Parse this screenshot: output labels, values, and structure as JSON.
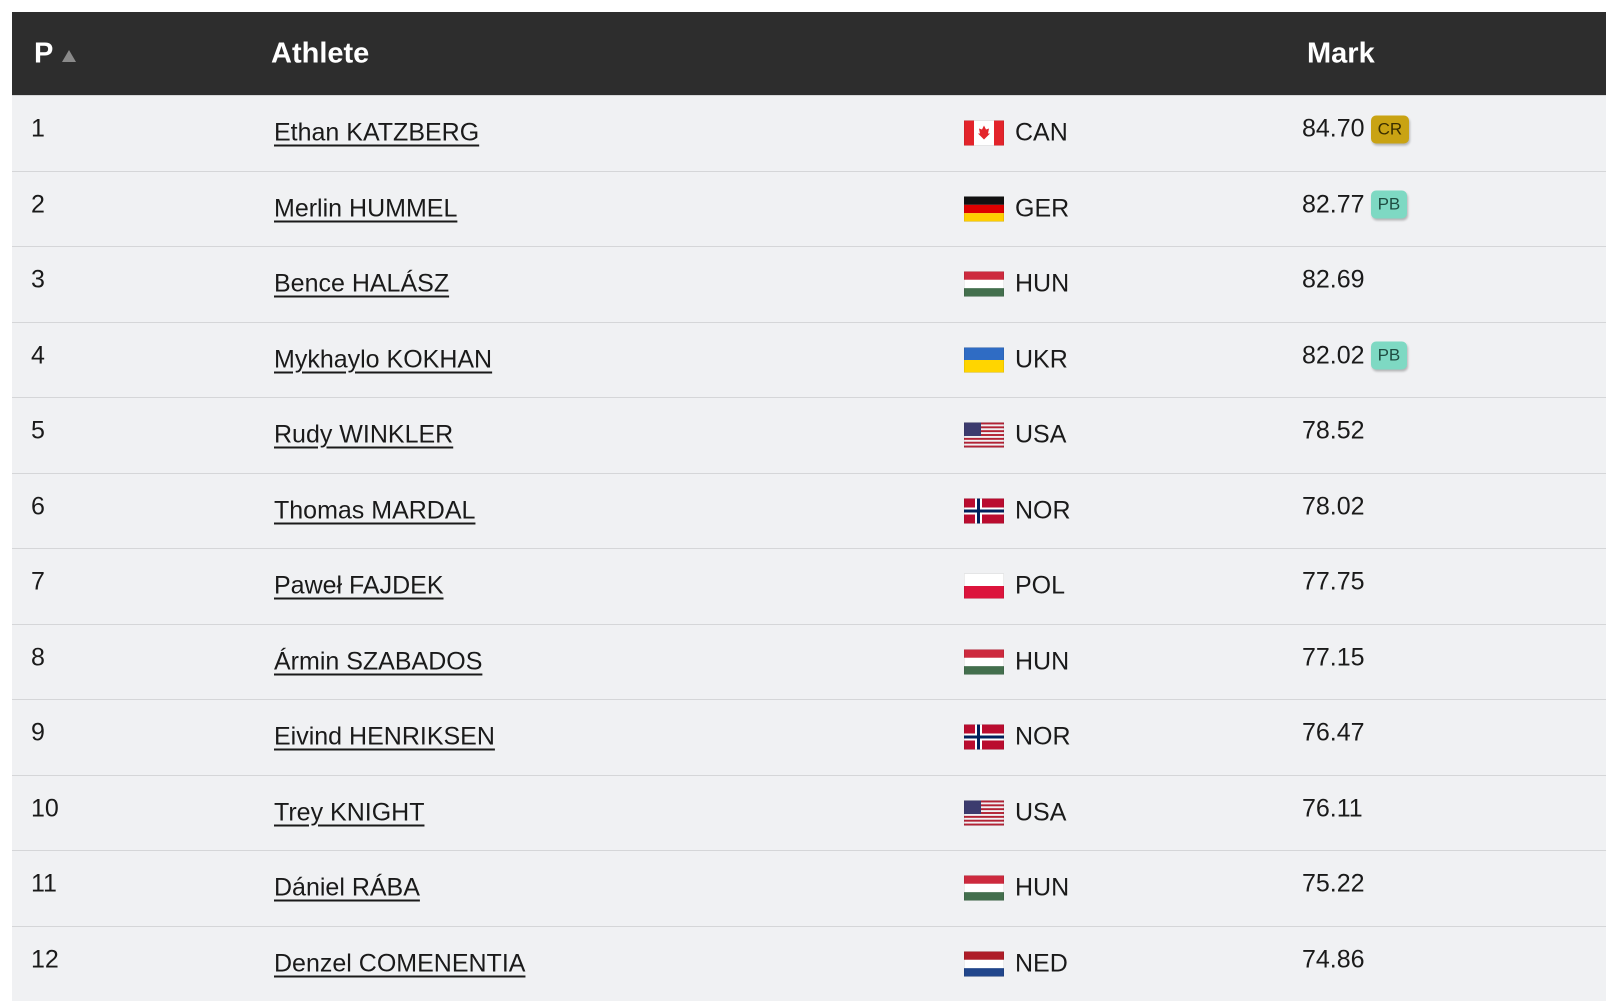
{
  "header": {
    "place": "P",
    "athlete": "Athlete",
    "mark": "Mark"
  },
  "rows": [
    {
      "place": 1,
      "athlete": "Ethan KATZBERG",
      "country": "CAN",
      "mark": "84.70",
      "badge": "CR"
    },
    {
      "place": 2,
      "athlete": "Merlin HUMMEL",
      "country": "GER",
      "mark": "82.77",
      "badge": "PB"
    },
    {
      "place": 3,
      "athlete": "Bence HALÁSZ",
      "country": "HUN",
      "mark": "82.69"
    },
    {
      "place": 4,
      "athlete": "Mykhaylo KOKHAN",
      "country": "UKR",
      "mark": "82.02",
      "badge": "PB"
    },
    {
      "place": 5,
      "athlete": "Rudy WINKLER",
      "country": "USA",
      "mark": "78.52"
    },
    {
      "place": 6,
      "athlete": "Thomas MARDAL",
      "country": "NOR",
      "mark": "78.02"
    },
    {
      "place": 7,
      "athlete": "Paweł FAJDEK",
      "country": "POL",
      "mark": "77.75"
    },
    {
      "place": 8,
      "athlete": "Ármin SZABADOS",
      "country": "HUN",
      "mark": "77.15"
    },
    {
      "place": 9,
      "athlete": "Eivind HENRIKSEN",
      "country": "NOR",
      "mark": "76.47"
    },
    {
      "place": 10,
      "athlete": "Trey KNIGHT",
      "country": "USA",
      "mark": "76.11"
    },
    {
      "place": 11,
      "athlete": "Dániel RÁBA",
      "country": "HUN",
      "mark": "75.22"
    },
    {
      "place": 12,
      "athlete": "Denzel COMENENTIA",
      "country": "NED",
      "mark": "74.86"
    }
  ]
}
